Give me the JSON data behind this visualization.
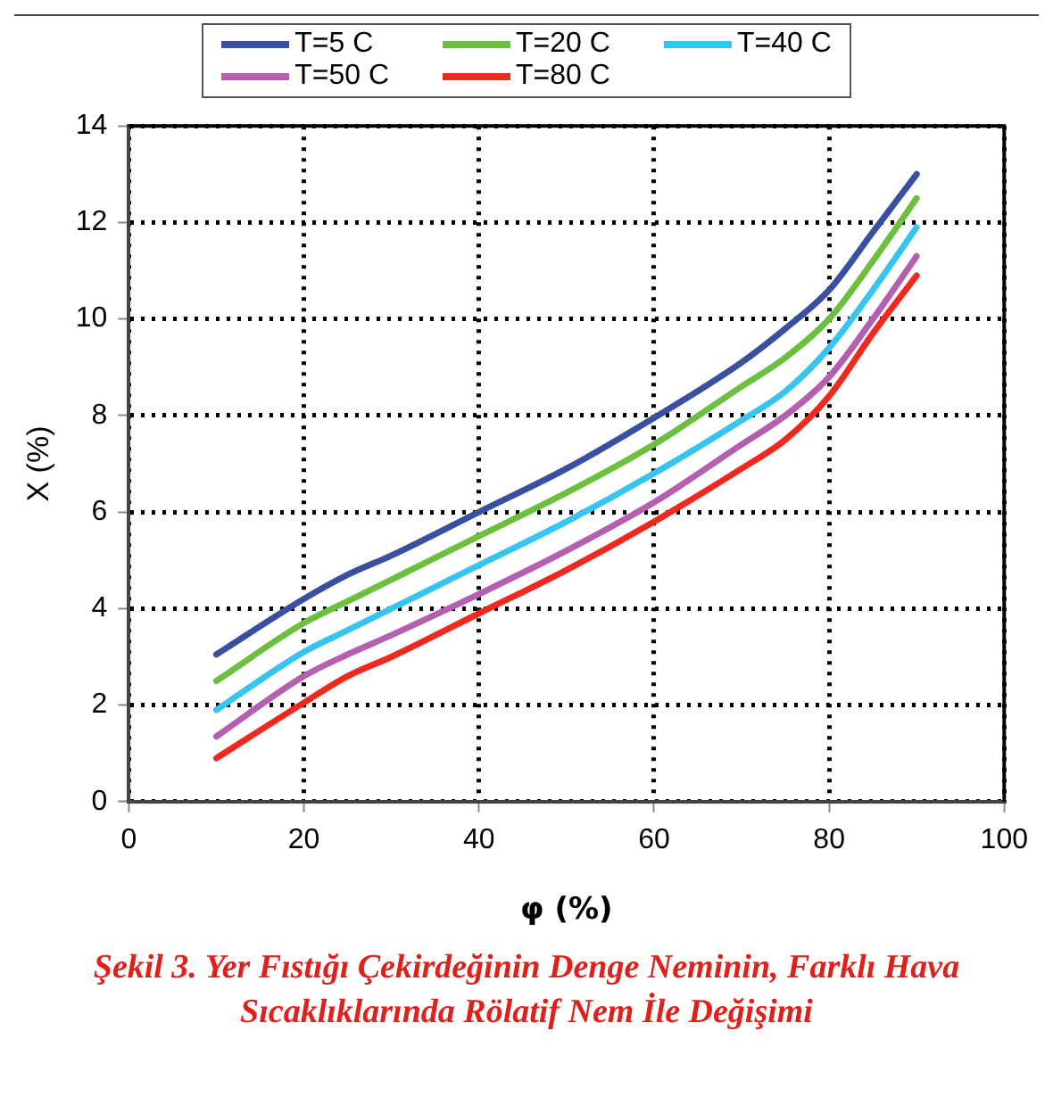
{
  "chart_data": {
    "type": "line",
    "xlabel": "φ (%)",
    "ylabel": "X (%)",
    "x": [
      10,
      20,
      25,
      30,
      40,
      50,
      60,
      70,
      75,
      80,
      85,
      90
    ],
    "series": [
      {
        "name": "T=5 C",
        "color": "#3a4fa0",
        "values": [
          3.05,
          4.2,
          4.7,
          5.1,
          6.0,
          6.9,
          7.95,
          9.1,
          9.8,
          10.6,
          11.8,
          13.0
        ]
      },
      {
        "name": "T=20 C",
        "color": "#6cbf3f",
        "values": [
          2.5,
          3.7,
          4.15,
          4.6,
          5.5,
          6.4,
          7.4,
          8.6,
          9.2,
          10.0,
          11.2,
          12.5
        ]
      },
      {
        "name": "T=40 C",
        "color": "#38c4f0",
        "values": [
          1.9,
          3.1,
          3.55,
          4.0,
          4.9,
          5.8,
          6.8,
          7.9,
          8.5,
          9.4,
          10.6,
          11.9
        ]
      },
      {
        "name": "T=50 C",
        "color": "#b45fb0",
        "values": [
          1.35,
          2.6,
          3.05,
          3.45,
          4.3,
          5.2,
          6.2,
          7.4,
          8.0,
          8.8,
          10.0,
          11.3
        ]
      },
      {
        "name": "T=80 C",
        "color": "#f0281e",
        "values": [
          0.9,
          2.05,
          2.6,
          3.0,
          3.9,
          4.8,
          5.8,
          6.9,
          7.5,
          8.4,
          9.7,
          10.9
        ]
      }
    ],
    "xlim": [
      0,
      100
    ],
    "xticks": [
      0,
      20,
      40,
      60,
      80,
      100
    ],
    "ylim": [
      0,
      14
    ],
    "yticks": [
      0,
      2,
      4,
      6,
      8,
      10,
      12,
      14
    ],
    "grid": true,
    "legend": "top",
    "marker": "none",
    "line_style": "solid",
    "annotations": [
      "Şekil 3. Yer Fıstığı Çekirdeğinin Denge Neminin, Farklı Hava Sıcaklıklarında Rölatif Nem İle Değişimi"
    ]
  }
}
